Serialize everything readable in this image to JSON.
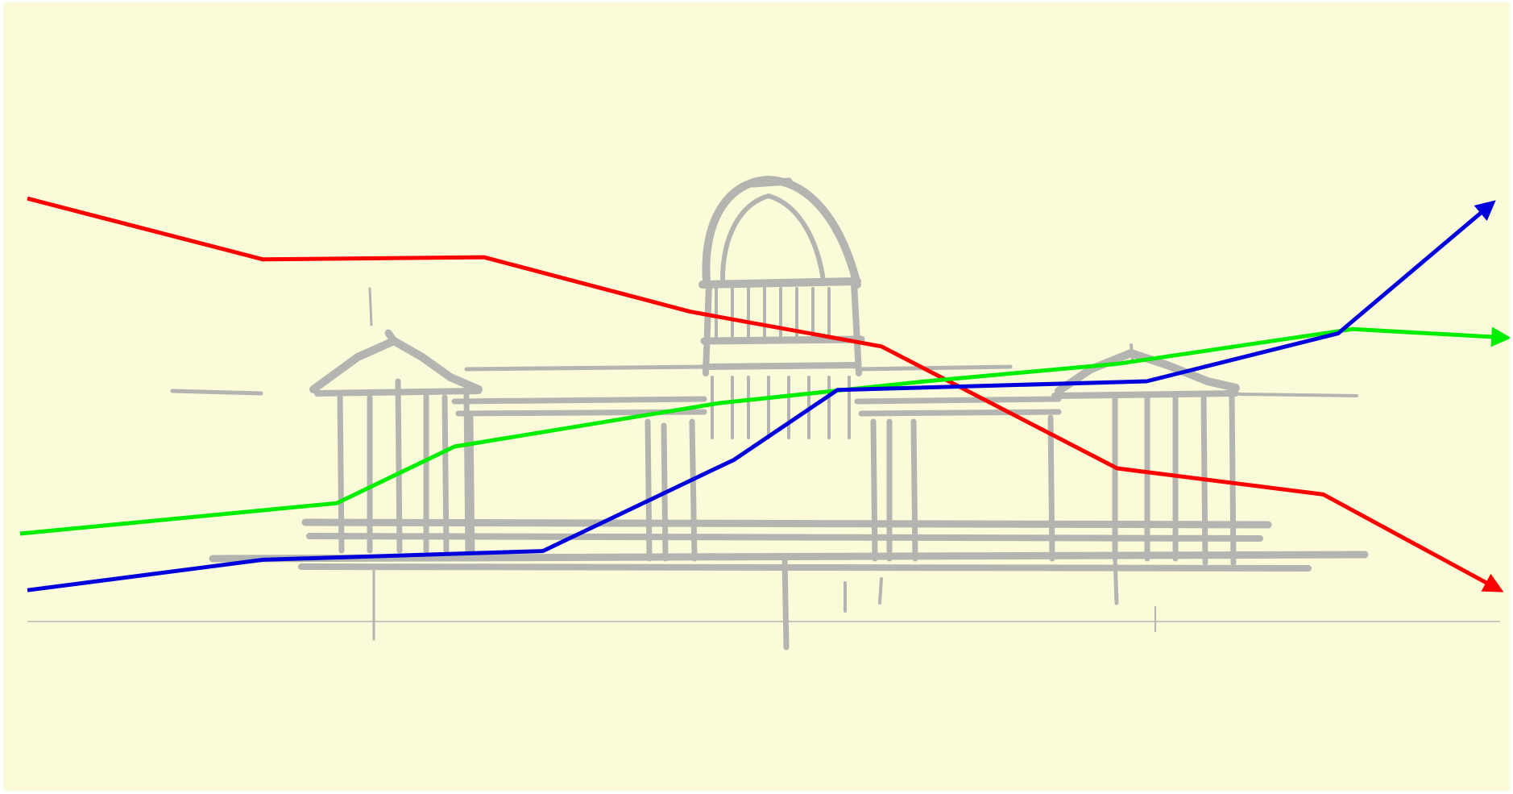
{
  "colors": {
    "background": "#fbfbd9",
    "sketch": "#b4b4b1",
    "baseline": "#b5b5b0",
    "trend_red": "#ff0000",
    "trend_green": "#00ee00",
    "trend_blue": "#0000dd"
  },
  "illustration": {
    "subject": "capitol-building-sketch"
  },
  "chart_data": {
    "type": "line",
    "series": [
      {
        "color": "red",
        "values": [
          9.2,
          7.8,
          7.85,
          6.6,
          5.8,
          3.0,
          2.4,
          0.2
        ]
      },
      {
        "color": "green",
        "values": [
          1.5,
          2.2,
          3.5,
          4.5,
          5.0,
          5.4,
          6.2,
          6.0
        ]
      },
      {
        "color": "blue",
        "values": [
          0.2,
          0.9,
          1.1,
          3.2,
          4.8,
          5.0,
          6.1,
          9.1
        ]
      }
    ],
    "ylim": [
      0,
      10
    ],
    "grid": false,
    "legend": "none",
    "arrows": true
  }
}
